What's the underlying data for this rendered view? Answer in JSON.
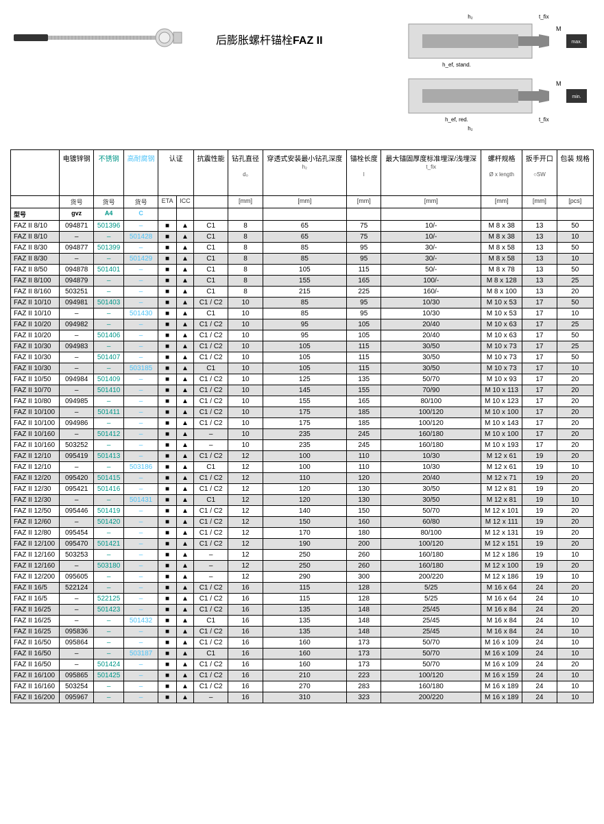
{
  "product": {
    "title_prefix": "后膨胀螺杆锚栓",
    "title_bold": "FAZ II"
  },
  "headers": {
    "row1": [
      "",
      "电镀锌钢",
      "不锈钢",
      "高耐腐钢",
      "认证",
      "",
      "抗震性能",
      "钻孔直径",
      "穿透式安装最小钻孔深度",
      "锚栓长度",
      "最大锚固厚度标准埋深/浅埋深",
      "螺杆规格",
      "扳手开口",
      "包装\n规格"
    ],
    "sub_labels": [
      "",
      "",
      "",
      "",
      "",
      "",
      "",
      "d₀",
      "h₂",
      "l",
      "t_fix",
      "Ø x length",
      "○SW",
      ""
    ],
    "row2": [
      "",
      "货号",
      "货号",
      "货号",
      "ETA",
      "ICC",
      "",
      "[mm]",
      "[mm]",
      "[mm]",
      "[mm]",
      "[mm]",
      "[mm]",
      "[pcs]"
    ],
    "row3": [
      "型号",
      "gvz",
      "A4",
      "C",
      "",
      "",
      "",
      "",
      "",
      "",
      "",
      "",
      "",
      ""
    ]
  },
  "colors": {
    "green": "#009688",
    "blue": "#4fc3f7",
    "shaded_bg": "#e0e0e0",
    "border": "#000000"
  },
  "rows": [
    {
      "model": "FAZ II 8/10",
      "gvz": "094871",
      "a4": "501396",
      "c": "–",
      "eta": "■",
      "icc": "▲",
      "seismic": "C1",
      "d0": "8",
      "h2": "65",
      "l": "75",
      "tfix": "10/-",
      "spec": "M 8 x 38",
      "sw": "13",
      "pcs": "50",
      "shaded": false
    },
    {
      "model": "FAZ II 8/10",
      "gvz": "–",
      "a4": "–",
      "c": "501428",
      "eta": "■",
      "icc": "▲",
      "seismic": "C1",
      "d0": "8",
      "h2": "65",
      "l": "75",
      "tfix": "10/-",
      "spec": "M 8 x 38",
      "sw": "13",
      "pcs": "10",
      "shaded": true
    },
    {
      "model": "FAZ II 8/30",
      "gvz": "094877",
      "a4": "501399",
      "c": "–",
      "eta": "■",
      "icc": "▲",
      "seismic": "C1",
      "d0": "8",
      "h2": "85",
      "l": "95",
      "tfix": "30/-",
      "spec": "M 8 x 58",
      "sw": "13",
      "pcs": "50",
      "shaded": false
    },
    {
      "model": "FAZ II 8/30",
      "gvz": "–",
      "a4": "–",
      "c": "501429",
      "eta": "■",
      "icc": "▲",
      "seismic": "C1",
      "d0": "8",
      "h2": "85",
      "l": "95",
      "tfix": "30/-",
      "spec": "M 8 x 58",
      "sw": "13",
      "pcs": "10",
      "shaded": true
    },
    {
      "model": "FAZ II 8/50",
      "gvz": "094878",
      "a4": "501401",
      "c": "–",
      "eta": "■",
      "icc": "▲",
      "seismic": "C1",
      "d0": "8",
      "h2": "105",
      "l": "115",
      "tfix": "50/-",
      "spec": "M 8 x 78",
      "sw": "13",
      "pcs": "50",
      "shaded": false
    },
    {
      "model": "FAZ II 8/100",
      "gvz": "094879",
      "a4": "–",
      "c": "–",
      "eta": "■",
      "icc": "▲",
      "seismic": "C1",
      "d0": "8",
      "h2": "155",
      "l": "165",
      "tfix": "100/-",
      "spec": "M 8 x 128",
      "sw": "13",
      "pcs": "25",
      "shaded": true
    },
    {
      "model": "FAZ II 8/160",
      "gvz": "503251",
      "a4": "–",
      "c": "–",
      "eta": "■",
      "icc": "▲",
      "seismic": "C1",
      "d0": "8",
      "h2": "215",
      "l": "225",
      "tfix": "160/-",
      "spec": "M 8 x 100",
      "sw": "13",
      "pcs": "20",
      "shaded": false
    },
    {
      "model": "FAZ II 10/10",
      "gvz": "094981",
      "a4": "501403",
      "c": "–",
      "eta": "■",
      "icc": "▲",
      "seismic": "C1 / C2",
      "d0": "10",
      "h2": "85",
      "l": "95",
      "tfix": "10/30",
      "spec": "M 10 x 53",
      "sw": "17",
      "pcs": "50",
      "shaded": true
    },
    {
      "model": "FAZ II 10/10",
      "gvz": "–",
      "a4": "–",
      "c": "501430",
      "eta": "■",
      "icc": "▲",
      "seismic": "C1",
      "d0": "10",
      "h2": "85",
      "l": "95",
      "tfix": "10/30",
      "spec": "M 10 x 53",
      "sw": "17",
      "pcs": "10",
      "shaded": false
    },
    {
      "model": "FAZ II 10/20",
      "gvz": "094982",
      "a4": "–",
      "c": "–",
      "eta": "■",
      "icc": "▲",
      "seismic": "C1 / C2",
      "d0": "10",
      "h2": "95",
      "l": "105",
      "tfix": "20/40",
      "spec": "M 10 x 63",
      "sw": "17",
      "pcs": "25",
      "shaded": true
    },
    {
      "model": "FAZ II 10/20",
      "gvz": "–",
      "a4": "501406",
      "c": "–",
      "eta": "■",
      "icc": "▲",
      "seismic": "C1 / C2",
      "d0": "10",
      "h2": "95",
      "l": "105",
      "tfix": "20/40",
      "spec": "M 10 x 63",
      "sw": "17",
      "pcs": "50",
      "shaded": false
    },
    {
      "model": "FAZ II 10/30",
      "gvz": "094983",
      "a4": "–",
      "c": "–",
      "eta": "■",
      "icc": "▲",
      "seismic": "C1 / C2",
      "d0": "10",
      "h2": "105",
      "l": "115",
      "tfix": "30/50",
      "spec": "M 10 x 73",
      "sw": "17",
      "pcs": "25",
      "shaded": true
    },
    {
      "model": "FAZ II 10/30",
      "gvz": "–",
      "a4": "501407",
      "c": "–",
      "eta": "■",
      "icc": "▲",
      "seismic": "C1 / C2",
      "d0": "10",
      "h2": "105",
      "l": "115",
      "tfix": "30/50",
      "spec": "M 10 x 73",
      "sw": "17",
      "pcs": "50",
      "shaded": false
    },
    {
      "model": "FAZ II 10/30",
      "gvz": "–",
      "a4": "–",
      "c": "503185",
      "eta": "■",
      "icc": "▲",
      "seismic": "C1",
      "d0": "10",
      "h2": "105",
      "l": "115",
      "tfix": "30/50",
      "spec": "M 10 x 73",
      "sw": "17",
      "pcs": "10",
      "shaded": true
    },
    {
      "model": "FAZ II 10/50",
      "gvz": "094984",
      "a4": "501409",
      "c": "–",
      "eta": "■",
      "icc": "▲",
      "seismic": "C1 / C2",
      "d0": "10",
      "h2": "125",
      "l": "135",
      "tfix": "50/70",
      "spec": "M 10 x 93",
      "sw": "17",
      "pcs": "20",
      "shaded": false
    },
    {
      "model": "FAZ II 10/70",
      "gvz": "–",
      "a4": "501410",
      "c": "–",
      "eta": "■",
      "icc": "▲",
      "seismic": "C1 / C2",
      "d0": "10",
      "h2": "145",
      "l": "155",
      "tfix": "70/90",
      "spec": "M 10 x 113",
      "sw": "17",
      "pcs": "20",
      "shaded": true
    },
    {
      "model": "FAZ II 10/80",
      "gvz": "094985",
      "a4": "–",
      "c": "–",
      "eta": "■",
      "icc": "▲",
      "seismic": "C1 / C2",
      "d0": "10",
      "h2": "155",
      "l": "165",
      "tfix": "80/100",
      "spec": "M 10 x 123",
      "sw": "17",
      "pcs": "20",
      "shaded": false
    },
    {
      "model": "FAZ II 10/100",
      "gvz": "–",
      "a4": "501411",
      "c": "–",
      "eta": "■",
      "icc": "▲",
      "seismic": "C1 / C2",
      "d0": "10",
      "h2": "175",
      "l": "185",
      "tfix": "100/120",
      "spec": "M 10 x 100",
      "sw": "17",
      "pcs": "20",
      "shaded": true
    },
    {
      "model": "FAZ II 10/100",
      "gvz": "094986",
      "a4": "–",
      "c": "–",
      "eta": "■",
      "icc": "▲",
      "seismic": "C1 / C2",
      "d0": "10",
      "h2": "175",
      "l": "185",
      "tfix": "100/120",
      "spec": "M 10 x 143",
      "sw": "17",
      "pcs": "20",
      "shaded": false
    },
    {
      "model": "FAZ II 10/160",
      "gvz": "–",
      "a4": "501412",
      "c": "–",
      "eta": "■",
      "icc": "▲",
      "seismic": "–",
      "d0": "10",
      "h2": "235",
      "l": "245",
      "tfix": "160/180",
      "spec": "M 10 x 100",
      "sw": "17",
      "pcs": "20",
      "shaded": true
    },
    {
      "model": "FAZ II 10/160",
      "gvz": "503252",
      "a4": "–",
      "c": "–",
      "eta": "■",
      "icc": "▲",
      "seismic": "–",
      "d0": "10",
      "h2": "235",
      "l": "245",
      "tfix": "160/180",
      "spec": "M 10 x 193",
      "sw": "17",
      "pcs": "20",
      "shaded": false
    },
    {
      "model": "FAZ II 12/10",
      "gvz": "095419",
      "a4": "501413",
      "c": "–",
      "eta": "■",
      "icc": "▲",
      "seismic": "C1 / C2",
      "d0": "12",
      "h2": "100",
      "l": "110",
      "tfix": "10/30",
      "spec": "M 12 x 61",
      "sw": "19",
      "pcs": "20",
      "shaded": true
    },
    {
      "model": "FAZ II 12/10",
      "gvz": "–",
      "a4": "–",
      "c": "503186",
      "eta": "■",
      "icc": "▲",
      "seismic": "C1",
      "d0": "12",
      "h2": "100",
      "l": "110",
      "tfix": "10/30",
      "spec": "M 12 x 61",
      "sw": "19",
      "pcs": "10",
      "shaded": false
    },
    {
      "model": "FAZ II 12/20",
      "gvz": "095420",
      "a4": "501415",
      "c": "–",
      "eta": "■",
      "icc": "▲",
      "seismic": "C1 / C2",
      "d0": "12",
      "h2": "110",
      "l": "120",
      "tfix": "20/40",
      "spec": "M 12 x 71",
      "sw": "19",
      "pcs": "20",
      "shaded": true
    },
    {
      "model": "FAZ II 12/30",
      "gvz": "095421",
      "a4": "501416",
      "c": "–",
      "eta": "■",
      "icc": "▲",
      "seismic": "C1 / C2",
      "d0": "12",
      "h2": "120",
      "l": "130",
      "tfix": "30/50",
      "spec": "M 12 x 81",
      "sw": "19",
      "pcs": "20",
      "shaded": false
    },
    {
      "model": "FAZ II 12/30",
      "gvz": "–",
      "a4": "–",
      "c": "501431",
      "eta": "■",
      "icc": "▲",
      "seismic": "C1",
      "d0": "12",
      "h2": "120",
      "l": "130",
      "tfix": "30/50",
      "spec": "M 12 x 81",
      "sw": "19",
      "pcs": "10",
      "shaded": true
    },
    {
      "model": "FAZ II 12/50",
      "gvz": "095446",
      "a4": "501419",
      "c": "–",
      "eta": "■",
      "icc": "▲",
      "seismic": "C1 / C2",
      "d0": "12",
      "h2": "140",
      "l": "150",
      "tfix": "50/70",
      "spec": "M 12 x 101",
      "sw": "19",
      "pcs": "20",
      "shaded": false
    },
    {
      "model": "FAZ II 12/60",
      "gvz": "–",
      "a4": "501420",
      "c": "–",
      "eta": "■",
      "icc": "▲",
      "seismic": "C1 / C2",
      "d0": "12",
      "h2": "150",
      "l": "160",
      "tfix": "60/80",
      "spec": "M 12 x 111",
      "sw": "19",
      "pcs": "20",
      "shaded": true
    },
    {
      "model": "FAZ II 12/80",
      "gvz": "095454",
      "a4": "–",
      "c": "–",
      "eta": "■",
      "icc": "▲",
      "seismic": "C1 / C2",
      "d0": "12",
      "h2": "170",
      "l": "180",
      "tfix": "80/100",
      "spec": "M 12 x 131",
      "sw": "19",
      "pcs": "20",
      "shaded": false
    },
    {
      "model": "FAZ II 12/100",
      "gvz": "095470",
      "a4": "501421",
      "c": "–",
      "eta": "■",
      "icc": "▲",
      "seismic": "C1 / C2",
      "d0": "12",
      "h2": "190",
      "l": "200",
      "tfix": "100/120",
      "spec": "M 12 x 151",
      "sw": "19",
      "pcs": "20",
      "shaded": true
    },
    {
      "model": "FAZ II 12/160",
      "gvz": "503253",
      "a4": "–",
      "c": "–",
      "eta": "■",
      "icc": "▲",
      "seismic": "–",
      "d0": "12",
      "h2": "250",
      "l": "260",
      "tfix": "160/180",
      "spec": "M 12 x 186",
      "sw": "19",
      "pcs": "10",
      "shaded": false
    },
    {
      "model": "FAZ II 12/160",
      "gvz": "–",
      "a4": "503180",
      "c": "–",
      "eta": "■",
      "icc": "▲",
      "seismic": "–",
      "d0": "12",
      "h2": "250",
      "l": "260",
      "tfix": "160/180",
      "spec": "M 12 x 100",
      "sw": "19",
      "pcs": "20",
      "shaded": true
    },
    {
      "model": "FAZ II 12/200",
      "gvz": "095605",
      "a4": "–",
      "c": "–",
      "eta": "■",
      "icc": "▲",
      "seismic": "–",
      "d0": "12",
      "h2": "290",
      "l": "300",
      "tfix": "200/220",
      "spec": "M 12 x 186",
      "sw": "19",
      "pcs": "10",
      "shaded": false
    },
    {
      "model": "FAZ II 16/5",
      "gvz": "522124",
      "a4": "–",
      "c": "–",
      "eta": "■",
      "icc": "▲",
      "seismic": "C1 / C2",
      "d0": "16",
      "h2": "115",
      "l": "128",
      "tfix": "5/25",
      "spec": "M 16 x 64",
      "sw": "24",
      "pcs": "20",
      "shaded": true
    },
    {
      "model": "FAZ II 16/5",
      "gvz": "–",
      "a4": "522125",
      "c": "–",
      "eta": "■",
      "icc": "▲",
      "seismic": "C1 / C2",
      "d0": "16",
      "h2": "115",
      "l": "128",
      "tfix": "5/25",
      "spec": "M 16 x 64",
      "sw": "24",
      "pcs": "10",
      "shaded": false
    },
    {
      "model": "FAZ II 16/25",
      "gvz": "–",
      "a4": "501423",
      "c": "–",
      "eta": "■",
      "icc": "▲",
      "seismic": "C1 / C2",
      "d0": "16",
      "h2": "135",
      "l": "148",
      "tfix": "25/45",
      "spec": "M 16 x 84",
      "sw": "24",
      "pcs": "20",
      "shaded": true
    },
    {
      "model": "FAZ II 16/25",
      "gvz": "–",
      "a4": "–",
      "c": "501432",
      "eta": "■",
      "icc": "▲",
      "seismic": "C1",
      "d0": "16",
      "h2": "135",
      "l": "148",
      "tfix": "25/45",
      "spec": "M 16 x 84",
      "sw": "24",
      "pcs": "10",
      "shaded": false
    },
    {
      "model": "FAZ II 16/25",
      "gvz": "095836",
      "a4": "–",
      "c": "–",
      "eta": "■",
      "icc": "▲",
      "seismic": "C1 / C2",
      "d0": "16",
      "h2": "135",
      "l": "148",
      "tfix": "25/45",
      "spec": "M 16 x 84",
      "sw": "24",
      "pcs": "10",
      "shaded": true
    },
    {
      "model": "FAZ II 16/50",
      "gvz": "095864",
      "a4": "–",
      "c": "–",
      "eta": "■",
      "icc": "▲",
      "seismic": "C1 / C2",
      "d0": "16",
      "h2": "160",
      "l": "173",
      "tfix": "50/70",
      "spec": "M 16 x 109",
      "sw": "24",
      "pcs": "10",
      "shaded": false
    },
    {
      "model": "FAZ II 16/50",
      "gvz": "–",
      "a4": "–",
      "c": "503187",
      "eta": "■",
      "icc": "▲",
      "seismic": "C1",
      "d0": "16",
      "h2": "160",
      "l": "173",
      "tfix": "50/70",
      "spec": "M 16 x 109",
      "sw": "24",
      "pcs": "10",
      "shaded": true
    },
    {
      "model": "FAZ II 16/50",
      "gvz": "–",
      "a4": "501424",
      "c": "–",
      "eta": "■",
      "icc": "▲",
      "seismic": "C1 / C2",
      "d0": "16",
      "h2": "160",
      "l": "173",
      "tfix": "50/70",
      "spec": "M 16 x 109",
      "sw": "24",
      "pcs": "20",
      "shaded": false
    },
    {
      "model": "FAZ II 16/100",
      "gvz": "095865",
      "a4": "501425",
      "c": "–",
      "eta": "■",
      "icc": "▲",
      "seismic": "C1 / C2",
      "d0": "16",
      "h2": "210",
      "l": "223",
      "tfix": "100/120",
      "spec": "M 16 x 159",
      "sw": "24",
      "pcs": "10",
      "shaded": true
    },
    {
      "model": "FAZ II 16/160",
      "gvz": "503254",
      "a4": "–",
      "c": "–",
      "eta": "■",
      "icc": "▲",
      "seismic": "C1 / C2",
      "d0": "16",
      "h2": "270",
      "l": "283",
      "tfix": "160/180",
      "spec": "M 16 x 189",
      "sw": "24",
      "pcs": "10",
      "shaded": false
    },
    {
      "model": "FAZ II 16/200",
      "gvz": "095967",
      "a4": "–",
      "c": "–",
      "eta": "■",
      "icc": "▲",
      "seismic": "–",
      "d0": "16",
      "h2": "310",
      "l": "323",
      "tfix": "200/220",
      "spec": "M 16 x 189",
      "sw": "24",
      "pcs": "10",
      "shaded": true
    }
  ]
}
